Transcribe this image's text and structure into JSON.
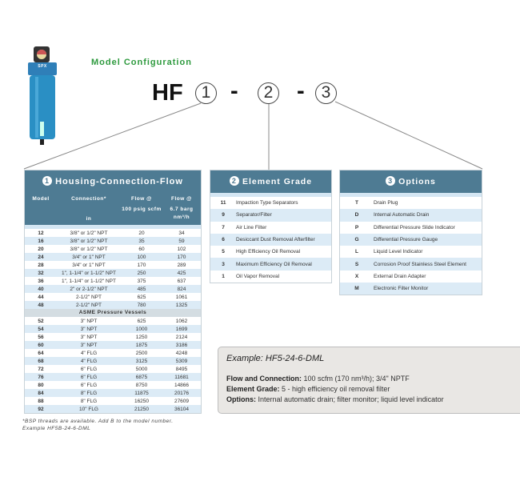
{
  "title": "Model Configuration",
  "model_code": {
    "prefix": "HF",
    "slots": [
      "1",
      "2",
      "3"
    ],
    "separator": "-"
  },
  "product_image": {
    "brand": "SPX",
    "icon": "compressed-air-filter-housing"
  },
  "housing": {
    "number": "1",
    "title": "Housing-Connection-Flow",
    "columns": [
      "Model",
      "Connection*",
      "Flow @",
      "Flow @"
    ],
    "units": [
      "",
      "in",
      "100 psig scfm",
      "6.7 barg nm³/h"
    ],
    "rows": [
      [
        "12",
        "3/8\" or 1/2\" NPT",
        "20",
        "34"
      ],
      [
        "16",
        "3/8\" or 1/2\" NPT",
        "35",
        "59"
      ],
      [
        "20",
        "3/8\" or 1/2\" NPT",
        "60",
        "102"
      ],
      [
        "24",
        "3/4\" or 1\" NPT",
        "100",
        "170"
      ],
      [
        "28",
        "3/4\" or 1\" NPT",
        "170",
        "289"
      ],
      [
        "32",
        "1\", 1-1/4\" or 1-1/2\" NPT",
        "250",
        "425"
      ],
      [
        "36",
        "1\", 1-1/4\" or 1-1/2\" NPT",
        "375",
        "637"
      ],
      [
        "40",
        "2\" or 2-1/2\" NPT",
        "485",
        "824"
      ],
      [
        "44",
        "2-1/2\" NPT",
        "625",
        "1061"
      ],
      [
        "48",
        "2-1/2\" NPT",
        "780",
        "1325"
      ]
    ],
    "section": "ASME Pressure Vessels",
    "asme_rows": [
      [
        "52",
        "3\" NPT",
        "625",
        "1062"
      ],
      [
        "54",
        "3\" NPT",
        "1000",
        "1699"
      ],
      [
        "56",
        "3\" NPT",
        "1250",
        "2124"
      ],
      [
        "60",
        "3\" NPT",
        "1875",
        "3186"
      ],
      [
        "64",
        "4\" FLG",
        "2500",
        "4248"
      ],
      [
        "68",
        "4\" FLG",
        "3125",
        "5309"
      ],
      [
        "72",
        "6\" FLG",
        "5000",
        "8495"
      ],
      [
        "76",
        "6\" FLG",
        "6875",
        "11681"
      ],
      [
        "80",
        "6\" FLG",
        "8750",
        "14866"
      ],
      [
        "84",
        "8\" FLG",
        "11875",
        "20176"
      ],
      [
        "88",
        "8\" FLG",
        "16250",
        "27609"
      ],
      [
        "92",
        "10\" FLG",
        "21250",
        "36104"
      ]
    ],
    "footnote": [
      "*BSP threads are available. Add B to the model number.",
      "Example HF5B-24-6-DML"
    ]
  },
  "grade": {
    "number": "2",
    "title": "Element Grade",
    "rows": [
      [
        "11",
        "Impaction Type Separators"
      ],
      [
        "9",
        "Separator/Filter"
      ],
      [
        "7",
        "Air Line Filter"
      ],
      [
        "6",
        "Desiccant Dust Removal Afterfilter"
      ],
      [
        "5",
        "High Efficiency Oil Removal"
      ],
      [
        "3",
        "Maximum Efficiency Oil Removal"
      ],
      [
        "1",
        "Oil Vapor Removal"
      ]
    ]
  },
  "options": {
    "number": "3",
    "title": "Options",
    "rows": [
      [
        "T",
        "Drain Plug"
      ],
      [
        "D",
        "Internal Automatic Drain"
      ],
      [
        "P",
        "Differential Pressure Slide Indicator"
      ],
      [
        "G",
        "Differential Pressure Gauge"
      ],
      [
        "L",
        "Liquid Level Indicator"
      ],
      [
        "S",
        "Corrosion Proof Stainless Steel Element"
      ],
      [
        "X",
        "External Drain Adapter"
      ],
      [
        "M",
        "Electronic Filter Monitor"
      ]
    ]
  },
  "example": {
    "heading": "Example: HF5-24-6-DML",
    "lines": [
      {
        "label": "Flow and Connection:",
        "text": " 100 scfm (170 nm³/h); 3/4\" NPTF"
      },
      {
        "label": "Element Grade:",
        "text": " 5 - high efficiency oil removal filter"
      },
      {
        "label": "Options:",
        "text": " Internal automatic drain; filter monitor; liquid level indicator"
      }
    ]
  },
  "colors": {
    "header": "#4e7b93",
    "alt_row": "#dcebf6",
    "title": "#2e9a3e"
  }
}
